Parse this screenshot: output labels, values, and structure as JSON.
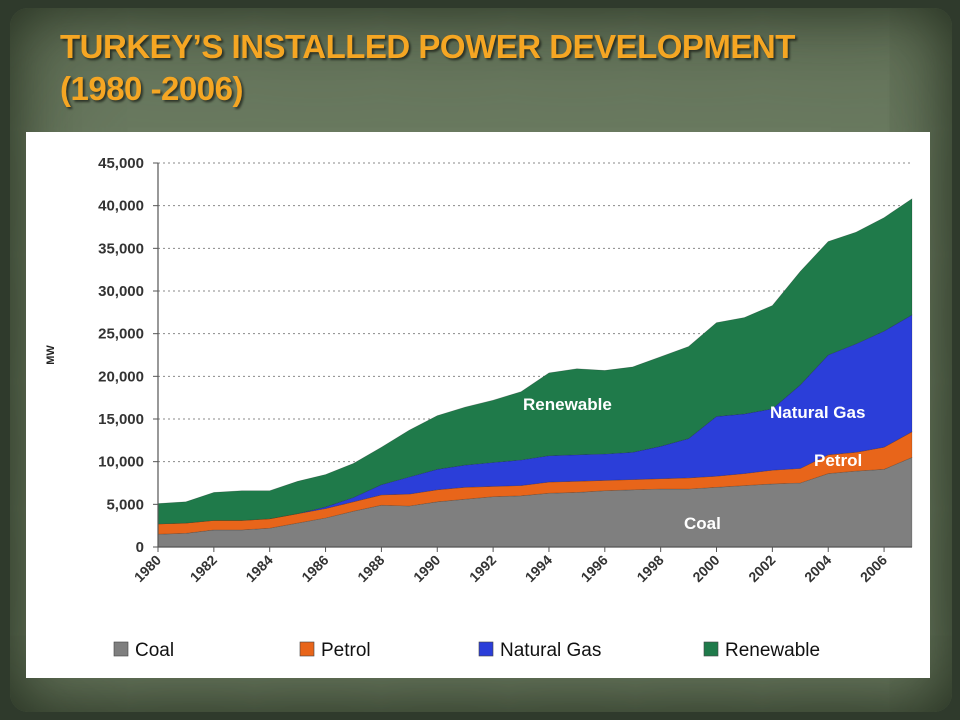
{
  "slide": {
    "title_line1": "TURKEY’S INSTALLED POWER DEVELOPMENT",
    "title_line2": "(1980 -2006)"
  },
  "chart_data": {
    "type": "area",
    "stacked": true,
    "ylabel": "MW",
    "ylim": [
      0,
      45000
    ],
    "y_ticks": [
      "0",
      "5,000",
      "10,000",
      "15,000",
      "20,000",
      "25,000",
      "30,000",
      "35,000",
      "40,000",
      "45,000"
    ],
    "y_tick_values": [
      0,
      5000,
      10000,
      15000,
      20000,
      25000,
      30000,
      35000,
      40000,
      45000
    ],
    "x_tick_labels": [
      "1980",
      "1982",
      "1984",
      "1986",
      "1988",
      "1990",
      "1992",
      "1994",
      "1996",
      "1998",
      "2000",
      "2002",
      "2004",
      "2006"
    ],
    "grid": "horizontal dotted",
    "legend_position": "bottom",
    "x": [
      1980,
      1981,
      1982,
      1983,
      1984,
      1985,
      1986,
      1987,
      1988,
      1989,
      1990,
      1991,
      1992,
      1993,
      1994,
      1995,
      1996,
      1997,
      1998,
      1999,
      2000,
      2001,
      2002,
      2003,
      2004,
      2005,
      2006,
      2007
    ],
    "series": [
      {
        "name": "Coal",
        "label": "Coal",
        "color": "#7f7f7f",
        "values": [
          1500,
          1600,
          2000,
          2000,
          2200,
          2800,
          3400,
          4200,
          4900,
          4800,
          5300,
          5600,
          5900,
          6000,
          6300,
          6400,
          6600,
          6700,
          6800,
          6800,
          7000,
          7200,
          7400,
          7500,
          8600,
          8900,
          9100,
          10500
        ]
      },
      {
        "name": "Petrol",
        "label": "Petrol",
        "color": "#e8651a",
        "values": [
          1200,
          1200,
          1100,
          1100,
          1100,
          1100,
          1100,
          1100,
          1200,
          1400,
          1400,
          1400,
          1200,
          1200,
          1300,
          1300,
          1200,
          1200,
          1200,
          1300,
          1300,
          1400,
          1600,
          1700,
          2200,
          2200,
          2600,
          3000
        ]
      },
      {
        "name": "Natural Gas",
        "label": "Natural Gas",
        "color": "#2b3ed9",
        "values": [
          0,
          0,
          0,
          0,
          0,
          0,
          200,
          500,
          1200,
          2000,
          2400,
          2600,
          2800,
          3000,
          3100,
          3100,
          3100,
          3200,
          3800,
          4600,
          7000,
          7000,
          7200,
          9800,
          11700,
          12700,
          13600,
          13700
        ]
      },
      {
        "name": "Renewable",
        "label": "Renewable",
        "color": "#1f7a4a",
        "values": [
          2400,
          2500,
          3300,
          3500,
          3300,
          3800,
          3800,
          4000,
          4400,
          5500,
          6300,
          6800,
          7300,
          8000,
          9700,
          10100,
          9800,
          10000,
          10500,
          10800,
          11000,
          11300,
          12100,
          13300,
          13300,
          13100,
          13300,
          13600
        ]
      }
    ]
  }
}
